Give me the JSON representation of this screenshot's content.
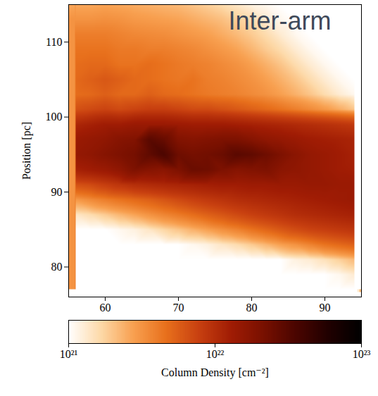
{
  "chart_data": {
    "type": "heatmap",
    "title": "Inter-arm",
    "y_label": "Position [pc]",
    "x": [
      56,
      58,
      60,
      62,
      64,
      66,
      68,
      70,
      72,
      74,
      76,
      78,
      80,
      82,
      84,
      86,
      88,
      90,
      92,
      94
    ],
    "y": [
      77,
      79,
      81,
      83,
      85,
      87,
      89,
      91,
      93,
      95,
      97,
      99,
      101,
      103,
      105,
      107,
      109,
      111,
      113,
      115
    ],
    "values": [
      [
        1e+21,
        1e+21,
        1e+21,
        1e+21,
        1e+21,
        1e+21,
        1e+21,
        1e+21,
        1e+21,
        1e+21,
        1e+21,
        1e+21,
        1e+21,
        1e+21,
        1e+21,
        1e+21,
        1e+21,
        1e+21,
        1e+21,
        1e+21
      ],
      [
        1e+21,
        1e+21,
        1e+21,
        1e+21,
        1e+21,
        1e+21,
        1e+21,
        1e+21,
        1e+21,
        1e+21,
        1e+21,
        1e+21,
        1e+21,
        1e+21,
        1e+21,
        1e+21,
        1e+21,
        1e+21,
        1.1e+21,
        1.3e+21
      ],
      [
        1e+21,
        1e+21,
        1e+21,
        1e+21,
        1e+21,
        1e+21,
        1e+21,
        1e+21,
        1e+21,
        1e+21,
        1e+21,
        1e+21,
        1e+21,
        1e+21,
        1e+21,
        1.2e+21,
        1.3e+21,
        1.5e+21,
        1.8e+21,
        2.2e+21
      ],
      [
        1e+21,
        1e+21,
        1e+21,
        1e+21,
        1e+21,
        1e+21,
        1e+21,
        1e+21,
        1.1e+21,
        1.2e+21,
        1.4e+21,
        1.6e+21,
        1.9e+21,
        2.3e+21,
        2.8e+21,
        3.2e+21,
        3.8e+21,
        4.5e+21,
        5e+21,
        5.5e+21
      ],
      [
        1e+21,
        1e+21,
        1e+21,
        1.1e+21,
        1.2e+21,
        1.4e+21,
        1.7e+21,
        2e+21,
        2.4e+21,
        2.8e+21,
        3.3e+21,
        3.8e+21,
        4.5e+21,
        5.2e+21,
        6e+21,
        6.8e+21,
        7.5e+21,
        8e+21,
        8.5e+21,
        9e+21
      ],
      [
        1.4e+21,
        1.6e+21,
        1.9e+21,
        2.3e+21,
        2.7e+21,
        3.2e+21,
        3.7e+21,
        4.2e+21,
        4.8e+21,
        5.5e+21,
        6.2e+21,
        7e+21,
        7.8e+21,
        8.5e+21,
        9.2e+21,
        1e+22,
        1.05e+22,
        1.1e+22,
        1.15e+22,
        1.2e+22
      ],
      [
        3e+21,
        3.5e+21,
        4e+21,
        4.5e+21,
        5e+21,
        5.5e+21,
        6.2e+21,
        7e+21,
        7.8e+21,
        8.5e+21,
        9.2e+21,
        1e+22,
        1.05e+22,
        1.1e+22,
        1.15e+22,
        1.2e+22,
        1.25e+22,
        1.3e+22,
        1.35e+22,
        1.4e+22
      ],
      [
        6.5e+21,
        7e+21,
        8e+21,
        9e+21,
        1e+22,
        1.05e+22,
        1.1e+22,
        1.15e+22,
        1.2e+22,
        1.25e+22,
        1.3e+22,
        1.3e+22,
        1.35e+22,
        1.35e+22,
        1.4e+22,
        1.4e+22,
        1.45e+22,
        1.45e+22,
        1.4e+22,
        1.4e+22
      ],
      [
        1.2e+22,
        1.3e+22,
        1.4e+22,
        1.6e+22,
        2e+22,
        1.8e+22,
        1.7e+22,
        2e+22,
        2.5e+22,
        2.4e+22,
        2e+22,
        1.8e+22,
        1.9e+22,
        2e+22,
        1.7e+22,
        1.6e+22,
        1.5e+22,
        1.4e+22,
        1.3e+22,
        1.25e+22
      ],
      [
        1.5e+22,
        1.6e+22,
        1.8e+22,
        2e+22,
        2.2e+22,
        2.8e+22,
        3.5e+22,
        2.4e+22,
        2.2e+22,
        2.3e+22,
        2.5e+22,
        3e+22,
        2.8e+22,
        2.4e+22,
        2e+22,
        1.7e+22,
        1.5e+22,
        1.4e+22,
        1.3e+22,
        1.2e+22
      ],
      [
        1.4e+22,
        1.5e+22,
        1.6e+22,
        1.8e+22,
        1.9e+22,
        3e+22,
        2.6e+22,
        1.9e+22,
        1.8e+22,
        1.9e+22,
        2e+22,
        2e+22,
        1.8e+22,
        1.6e+22,
        1.5e+22,
        1.4e+22,
        1.3e+22,
        1.25e+22,
        1.2e+22,
        1.15e+22
      ],
      [
        1.1e+22,
        1.2e+22,
        1.3e+22,
        1.3e+22,
        1.4e+22,
        1.4e+22,
        1.4e+22,
        1.35e+22,
        1.3e+22,
        1.3e+22,
        1.3e+22,
        1.25e+22,
        1.2e+22,
        1.15e+22,
        1.1e+22,
        1.05e+22,
        1e+22,
        9.5e+21,
        9e+21,
        8.5e+21
      ],
      [
        6.5e+21,
        7e+21,
        7.5e+21,
        7e+21,
        7.5e+21,
        8e+21,
        8e+21,
        7.5e+21,
        7e+21,
        7e+21,
        6.5e+21,
        6e+21,
        5.5e+21,
        5e+21,
        4.5e+21,
        4e+21,
        3.5e+21,
        3e+21,
        2.5e+21,
        2e+21
      ],
      [
        4.8e+21,
        5e+21,
        5.5e+21,
        5e+21,
        5e+21,
        5.5e+21,
        5e+21,
        4.8e+21,
        4.5e+21,
        4.2e+21,
        4e+21,
        3.8e+21,
        3.5e+21,
        3.2e+21,
        2.8e+21,
        2.4e+21,
        2e+21,
        1.6e+21,
        1.3e+21,
        1.1e+21
      ],
      [
        5e+21,
        5.5e+21,
        6e+21,
        5.5e+21,
        5e+21,
        4.8e+21,
        4.5e+21,
        4.3e+21,
        4.5e+21,
        4e+21,
        3.8e+21,
        3.5e+21,
        3.2e+21,
        2.8e+21,
        2.4e+21,
        2e+21,
        1.6e+21,
        1.3e+21,
        1.1e+21,
        1e+21
      ],
      [
        4.8e+21,
        5e+21,
        5e+21,
        4.5e+21,
        4.5e+21,
        4.8e+21,
        4.5e+21,
        4.2e+21,
        4e+21,
        3.8e+21,
        3.5e+21,
        3.2e+21,
        2.8e+21,
        2.4e+21,
        2e+21,
        1.6e+21,
        1.3e+21,
        1.1e+21,
        1e+21,
        1e+21
      ],
      [
        4.5e+21,
        4.5e+21,
        4.5e+21,
        4.2e+21,
        4.2e+21,
        4e+21,
        4e+21,
        3.8e+21,
        3.6e+21,
        3.3e+21,
        3e+21,
        2.7e+21,
        2.3e+21,
        1.9e+21,
        1.6e+21,
        1.3e+21,
        1.1e+21,
        1e+21,
        1e+21,
        1e+21
      ],
      [
        4e+21,
        4e+21,
        4e+21,
        3.8e+21,
        3.6e+21,
        3.5e+21,
        3.4e+21,
        3.2e+21,
        3e+21,
        2.8e+21,
        2.5e+21,
        2.2e+21,
        1.9e+21,
        1.6e+21,
        1.3e+21,
        1.1e+21,
        1e+21,
        1e+21,
        1e+21,
        1e+21
      ],
      [
        3.2e+21,
        3.2e+21,
        3.3e+21,
        3.2e+21,
        3e+21,
        2.9e+21,
        2.8e+21,
        2.7e+21,
        2.5e+21,
        2.3e+21,
        2.1e+21,
        1.8e+21,
        1.6e+21,
        1.3e+21,
        1.1e+21,
        1e+21,
        1e+21,
        1e+21,
        1e+21,
        1e+21
      ],
      [
        2.6e+21,
        2.6e+21,
        2.7e+21,
        2.6e+21,
        2.5e+21,
        2.4e+21,
        2.3e+21,
        2.2e+21,
        2e+21,
        1.8e+21,
        1.6e+21,
        1.4e+21,
        1.2e+21,
        1.1e+21,
        1e+21,
        1e+21,
        1e+21,
        1e+21,
        1e+21,
        1e+21
      ]
    ],
    "xlim": [
      55,
      95
    ],
    "xticks": [
      60,
      70,
      80,
      90
    ],
    "ylim": [
      76,
      115
    ],
    "yticks": [
      80,
      90,
      100,
      110
    ],
    "colorbar": {
      "label": "Column Density [cm⁻²]",
      "range": [
        1e+21,
        1e+23
      ],
      "ticks": [
        {
          "value": 1e+21,
          "label": "10²¹"
        },
        {
          "value": 1e+22,
          "label": "10²²"
        },
        {
          "value": 1e+23,
          "label": "10²³"
        }
      ],
      "log": true
    }
  }
}
